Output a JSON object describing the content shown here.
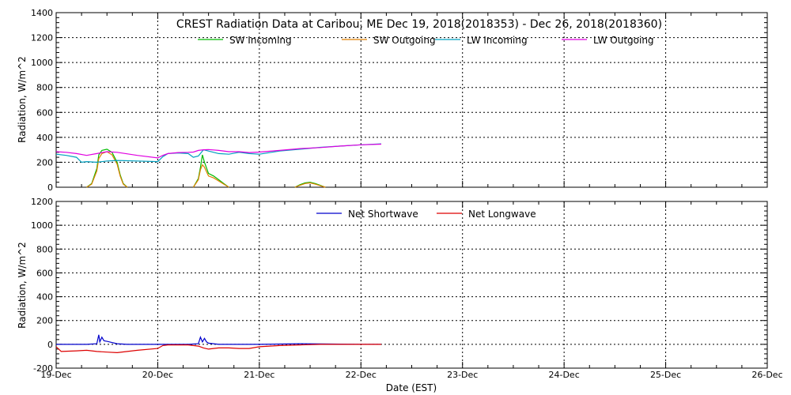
{
  "chart_data": [
    {
      "type": "line",
      "title": "CREST Radiation Data at Caribou, ME   Dec 19, 2018(2018353) - Dec 26, 2018(2018360)",
      "xlabel": "",
      "ylabel": "Radiation, W/m^2",
      "xlim": [
        0,
        7
      ],
      "ylim": [
        0,
        1400
      ],
      "yticks": [
        0,
        200,
        400,
        600,
        800,
        1000,
        1200,
        1400
      ],
      "xticks": [
        0,
        1,
        2,
        3,
        4,
        5,
        6,
        7
      ],
      "grid": true,
      "legend": "top",
      "series": [
        {
          "name": "SW Incoming",
          "color": "#00bb00",
          "x": [
            0.3,
            0.35,
            0.4,
            0.42,
            0.45,
            0.5,
            0.55,
            0.6,
            0.63,
            0.66,
            0.7,
            null,
            1.35,
            1.4,
            1.42,
            1.44,
            1.46,
            1.5,
            1.55,
            1.6,
            1.65,
            1.7,
            null,
            2.35,
            2.4,
            2.45,
            2.5,
            2.55,
            2.6,
            2.65
          ],
          "y": [
            0,
            30,
            150,
            260,
            295,
            305,
            280,
            200,
            100,
            30,
            0,
            null,
            0,
            70,
            160,
            260,
            200,
            110,
            90,
            60,
            30,
            0,
            null,
            0,
            20,
            35,
            40,
            30,
            15,
            0
          ]
        },
        {
          "name": "SW Outgoing",
          "color": "#e08000",
          "x": [
            0.3,
            0.35,
            0.4,
            0.42,
            0.45,
            0.5,
            0.55,
            0.6,
            0.63,
            0.66,
            0.7,
            null,
            1.35,
            1.4,
            1.42,
            1.44,
            1.46,
            1.5,
            1.55,
            1.6,
            1.65,
            1.7,
            null,
            2.35,
            2.4,
            2.45,
            2.5,
            2.55,
            2.6,
            2.65
          ],
          "y": [
            0,
            25,
            130,
            230,
            270,
            285,
            260,
            185,
            90,
            25,
            0,
            null,
            0,
            60,
            140,
            180,
            160,
            90,
            75,
            50,
            25,
            0,
            null,
            0,
            15,
            30,
            35,
            25,
            12,
            0
          ]
        },
        {
          "name": "LW Incoming",
          "color": "#00a0c0",
          "x": [
            0,
            0.1,
            0.2,
            0.25,
            0.3,
            0.4,
            0.5,
            0.6,
            0.8,
            1.0,
            1.05,
            1.1,
            1.2,
            1.3,
            1.35,
            1.4,
            1.45,
            1.5,
            1.6,
            1.7,
            1.8,
            1.9,
            2.0,
            2.2,
            2.4,
            2.6,
            2.8,
            3.0,
            3.2
          ],
          "y": [
            265,
            255,
            240,
            200,
            205,
            200,
            210,
            215,
            210,
            205,
            245,
            270,
            275,
            270,
            240,
            250,
            300,
            290,
            270,
            265,
            280,
            270,
            265,
            290,
            305,
            320,
            330,
            340,
            348
          ]
        },
        {
          "name": "LW Outgoing",
          "color": "#e000e0",
          "x": [
            0,
            0.1,
            0.2,
            0.3,
            0.4,
            0.5,
            0.6,
            0.8,
            1.0,
            1.05,
            1.1,
            1.2,
            1.3,
            1.35,
            1.4,
            1.45,
            1.5,
            1.6,
            1.7,
            1.8,
            1.9,
            2.0,
            2.2,
            2.4,
            2.6,
            2.8,
            3.0,
            3.2
          ],
          "y": [
            285,
            280,
            270,
            255,
            270,
            285,
            280,
            255,
            235,
            255,
            270,
            278,
            280,
            282,
            295,
            300,
            302,
            295,
            285,
            285,
            278,
            282,
            295,
            310,
            318,
            330,
            340,
            345
          ]
        }
      ]
    },
    {
      "type": "line",
      "title": "",
      "xlabel": "Date (EST)",
      "ylabel": "Radiation, W/m^2",
      "xlim": [
        0,
        7
      ],
      "ylim": [
        -200,
        1200
      ],
      "yticks": [
        -200,
        0,
        200,
        400,
        600,
        800,
        1000,
        1200
      ],
      "xticks": [
        0,
        1,
        2,
        3,
        4,
        5,
        6,
        7
      ],
      "categories": [
        "19-Dec",
        "20-Dec",
        "21-Dec",
        "22-Dec",
        "23-Dec",
        "24-Dec",
        "25-Dec",
        "26-Dec"
      ],
      "grid": true,
      "legend": "top",
      "series": [
        {
          "name": "Net Shortwave",
          "color": "#0000cc",
          "x": [
            0,
            0.3,
            0.4,
            0.42,
            0.43,
            0.45,
            0.47,
            0.5,
            0.55,
            0.6,
            0.7,
            1.0,
            1.3,
            1.4,
            1.42,
            1.44,
            1.46,
            1.48,
            1.5,
            1.6,
            2.0,
            2.4,
            3.0,
            3.2
          ],
          "y": [
            0,
            0,
            5,
            80,
            20,
            60,
            30,
            25,
            15,
            5,
            0,
            0,
            0,
            5,
            60,
            20,
            50,
            20,
            10,
            0,
            0,
            5,
            0,
            0
          ]
        },
        {
          "name": "Net Longwave",
          "color": "#dd0000",
          "x": [
            0,
            0.05,
            0.2,
            0.3,
            0.4,
            0.5,
            0.6,
            0.8,
            1.0,
            1.05,
            1.1,
            1.3,
            1.4,
            1.45,
            1.5,
            1.6,
            1.7,
            1.8,
            1.9,
            2.0,
            2.2,
            2.4,
            2.6,
            3.0,
            3.2
          ],
          "y": [
            -20,
            -60,
            -55,
            -50,
            -60,
            -65,
            -70,
            -50,
            -35,
            -10,
            -5,
            -5,
            -15,
            -30,
            -40,
            -30,
            -30,
            -35,
            -35,
            -20,
            -10,
            -5,
            0,
            0,
            0
          ]
        }
      ]
    }
  ]
}
